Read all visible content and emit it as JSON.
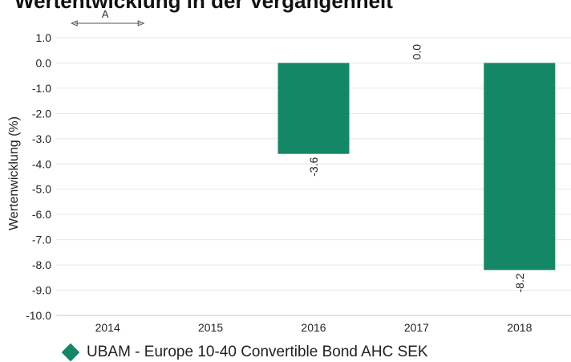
{
  "chart_data": {
    "type": "bar",
    "title": "Wertentwicklung in der Vergangenheit",
    "ylabel": "Wertenwicklung (%)",
    "categories": [
      "2014",
      "2015",
      "2016",
      "2017",
      "2018"
    ],
    "series": [
      {
        "name": "UBAM - Europe 10-40 Convertible Bond AHC SEK",
        "values": [
          null,
          null,
          -3.6,
          0.0,
          -8.2
        ],
        "labels": [
          "",
          "",
          "-3.6",
          "0.0",
          "-8.2"
        ]
      }
    ],
    "ylim": [
      -10.0,
      1.0
    ],
    "yticks": [
      "1.0",
      "0.0",
      "-1.0",
      "-2.0",
      "-3.0",
      "-4.0",
      "-5.0",
      "-6.0",
      "-7.0",
      "-8.0",
      "-9.0",
      "-10.0"
    ],
    "grid": true,
    "annotation": {
      "text": "A",
      "categories": [
        "2014"
      ]
    },
    "legend": "bottom-left",
    "colors": {
      "bar": "#148766",
      "grid": "#e6e6e6",
      "axis": "#c8c8c8"
    }
  }
}
